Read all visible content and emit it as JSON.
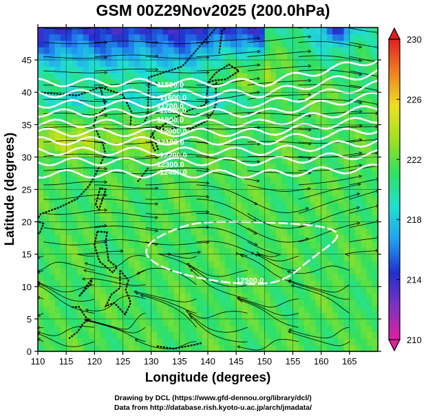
{
  "title": "GSM 00Z29Nov2025 (200.0hPa)",
  "credits": {
    "line1": "Drawing by DCL (https://www.gfd-dennou.org/library/dcl/)",
    "line2": "Data from http://database.rish.kyoto-u.ac.jp/arch/jmadata/"
  },
  "chart_data": {
    "type": "heatmap",
    "title": "GSM 00Z29Nov2025 (200.0hPa)",
    "xlabel": "Longitude (degrees)",
    "ylabel": "Latitude (degrees)",
    "xlim": [
      110,
      170
    ],
    "ylim": [
      0,
      50
    ],
    "x_ticks": [
      "110",
      "115",
      "120",
      "125",
      "130",
      "135",
      "140",
      "145",
      "150",
      "155",
      "160",
      "165"
    ],
    "y_ticks": [
      "0",
      "5",
      "10",
      "15",
      "20",
      "25",
      "30",
      "35",
      "40",
      "45"
    ],
    "colorbar": {
      "min": 210,
      "max": 230,
      "ticks": [
        "210",
        "214",
        "218",
        "222",
        "226",
        "230"
      ],
      "colors": [
        "#e020a0",
        "#8030c0",
        "#2030d0",
        "#20a0f0",
        "#20e0d0",
        "#30e060",
        "#a0e020",
        "#f0e020",
        "#f08020",
        "#e02020"
      ]
    },
    "contours": [
      {
        "label": "11500.0",
        "lat": 41.5
      },
      {
        "label": "11600.0",
        "lat": 39.8
      },
      {
        "label": "11700.0",
        "lat": 38.2
      },
      {
        "label": "11800.0",
        "lat": 36.8
      },
      {
        "label": "11900.0",
        "lat": 35.2
      },
      {
        "label": "12000.0",
        "lat": 33.8
      },
      {
        "label": "12100.0",
        "lat": 32.5
      },
      {
        "label": "12200.0",
        "lat": 30.9
      },
      {
        "label": "12300.0",
        "lat": 29.3
      },
      {
        "label": "12400.0",
        "lat": 27.4
      },
      {
        "label": "12500.0",
        "lat": 16.0
      }
    ],
    "annotations": [
      "wind streamlines",
      "coastlines"
    ]
  }
}
